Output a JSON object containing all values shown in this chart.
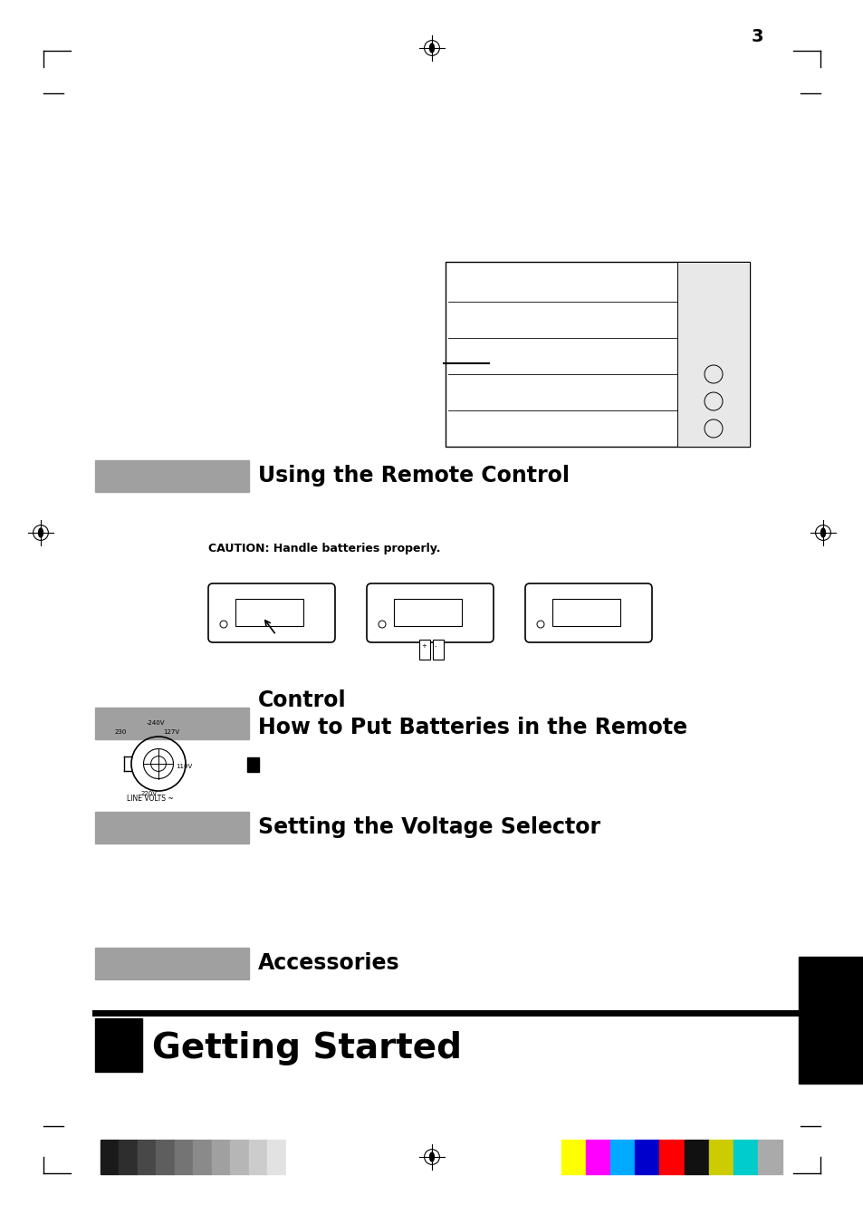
{
  "bg_color": "#ffffff",
  "page_width": 9.54,
  "page_height": 13.51,
  "top_bar_grayscale_colors": [
    "#1a1a1a",
    "#2e2e2e",
    "#484848",
    "#5e5e5e",
    "#747474",
    "#8a8a8a",
    "#a0a0a0",
    "#b6b6b6",
    "#cccccc",
    "#e2e2e2",
    "#ffffff"
  ],
  "top_bar_color_colors": [
    "#ffff00",
    "#ff00ff",
    "#00aaff",
    "#0000cc",
    "#ff0000",
    "#111111",
    "#cccc00",
    "#00cccc",
    "#aaaaaa"
  ],
  "getting_started_text": "Getting Started",
  "accessories_text": "Accessories",
  "voltage_text": "Setting the Voltage Selector",
  "batteries_line1": "How to Put Batteries in the Remote",
  "batteries_line2": "Control",
  "remote_text": "Using the Remote Control",
  "caution_text": "CAUTION: Handle batteries properly.",
  "page_number": "3"
}
